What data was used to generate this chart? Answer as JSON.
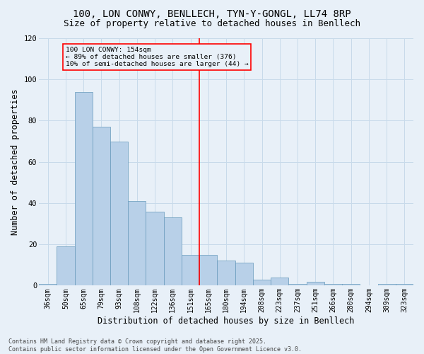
{
  "title1": "100, LON CONWY, BENLLECH, TYN-Y-GONGL, LL74 8RP",
  "title2": "Size of property relative to detached houses in Benllech",
  "xlabel": "Distribution of detached houses by size in Benllech",
  "ylabel": "Number of detached properties",
  "footer": "Contains HM Land Registry data © Crown copyright and database right 2025.\nContains public sector information licensed under the Open Government Licence v3.0.",
  "categories": [
    "36sqm",
    "50sqm",
    "65sqm",
    "79sqm",
    "93sqm",
    "108sqm",
    "122sqm",
    "136sqm",
    "151sqm",
    "165sqm",
    "180sqm",
    "194sqm",
    "208sqm",
    "223sqm",
    "237sqm",
    "251sqm",
    "266sqm",
    "280sqm",
    "294sqm",
    "309sqm",
    "323sqm"
  ],
  "bar_values": [
    1,
    19,
    94,
    77,
    70,
    41,
    36,
    33,
    15,
    15,
    12,
    11,
    3,
    4,
    1,
    2,
    1,
    1,
    0,
    1,
    1
  ],
  "bar_color": "#b8d0e8",
  "bar_edge_color": "#6699bb",
  "grid_color": "#c8daea",
  "bg_color": "#e8f0f8",
  "vline_x_idx": 8,
  "vline_color": "red",
  "annotation_text": "100 LON CONWY: 154sqm\n← 89% of detached houses are smaller (376)\n10% of semi-detached houses are larger (44) →",
  "annotation_box_color": "red",
  "ylim": [
    0,
    120
  ],
  "yticks": [
    0,
    20,
    40,
    60,
    80,
    100,
    120
  ],
  "title_fontsize": 10,
  "subtitle_fontsize": 9,
  "tick_fontsize": 7,
  "label_fontsize": 8.5,
  "footer_fontsize": 6
}
